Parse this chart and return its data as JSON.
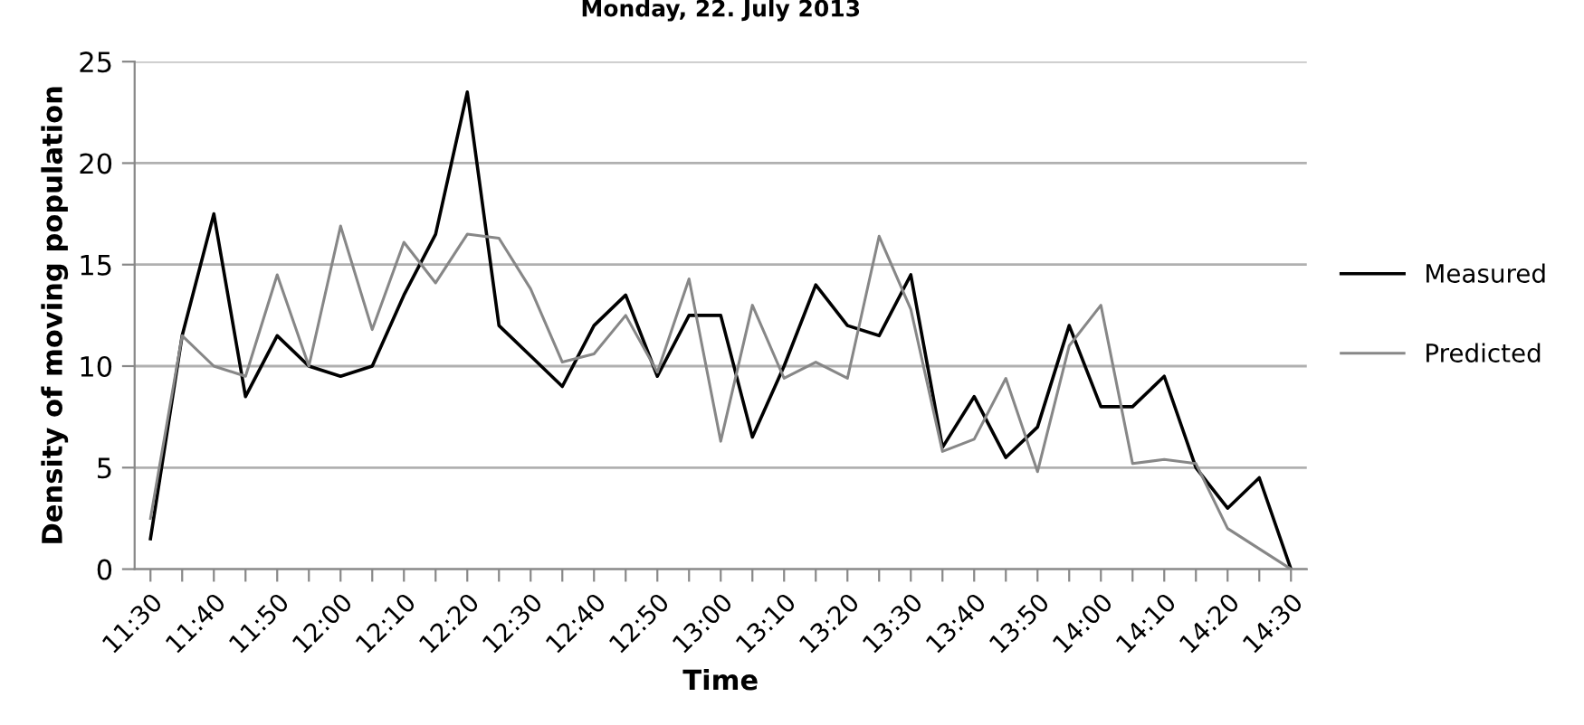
{
  "chart_data": {
    "type": "line",
    "title": "Monday, 22. July 2013",
    "xlabel": "Time",
    "ylabel": "Density of moving population",
    "categories": [
      "11:30",
      null,
      "11:40",
      null,
      "11:50",
      null,
      "12:00",
      null,
      "12:10",
      null,
      "12:20",
      null,
      "12:30",
      null,
      "12:40",
      null,
      "12:50",
      null,
      "13:00",
      null,
      "13:10",
      null,
      "13:20",
      null,
      "13:30",
      null,
      "13:40",
      null,
      "13:50",
      null,
      "14:00",
      null,
      "14:10",
      null,
      "14:20",
      null,
      "14:30"
    ],
    "series": [
      {
        "name": "Measured",
        "color": "#000000",
        "values": [
          1.5,
          11.5,
          17.5,
          8.5,
          11.5,
          10,
          9.5,
          10,
          13.5,
          16.5,
          23.5,
          12,
          10.5,
          9,
          12,
          13.5,
          9.5,
          12.5,
          12.5,
          6.5,
          10,
          14,
          12,
          11.5,
          14.5,
          6,
          8.5,
          5.5,
          7,
          12,
          8,
          8,
          9.5,
          5,
          3,
          4.5,
          0
        ]
      },
      {
        "name": "Predicted",
        "color": "#878787",
        "values": [
          2.5,
          11.5,
          10,
          9.5,
          14.5,
          10,
          16.9,
          11.8,
          16.1,
          14.1,
          16.5,
          16.3,
          13.8,
          10.2,
          10.6,
          12.5,
          9.7,
          14.3,
          6.3,
          13,
          9.4,
          10.2,
          9.4,
          16.4,
          12.8,
          5.8,
          6.4,
          9.4,
          4.8,
          11,
          13,
          5.2,
          5.4,
          5.2,
          2,
          1,
          0
        ]
      }
    ],
    "ylim": [
      0,
      25
    ],
    "yticks": [
      0,
      5,
      10,
      15,
      20,
      25
    ],
    "grid": "y",
    "legend": "right"
  }
}
